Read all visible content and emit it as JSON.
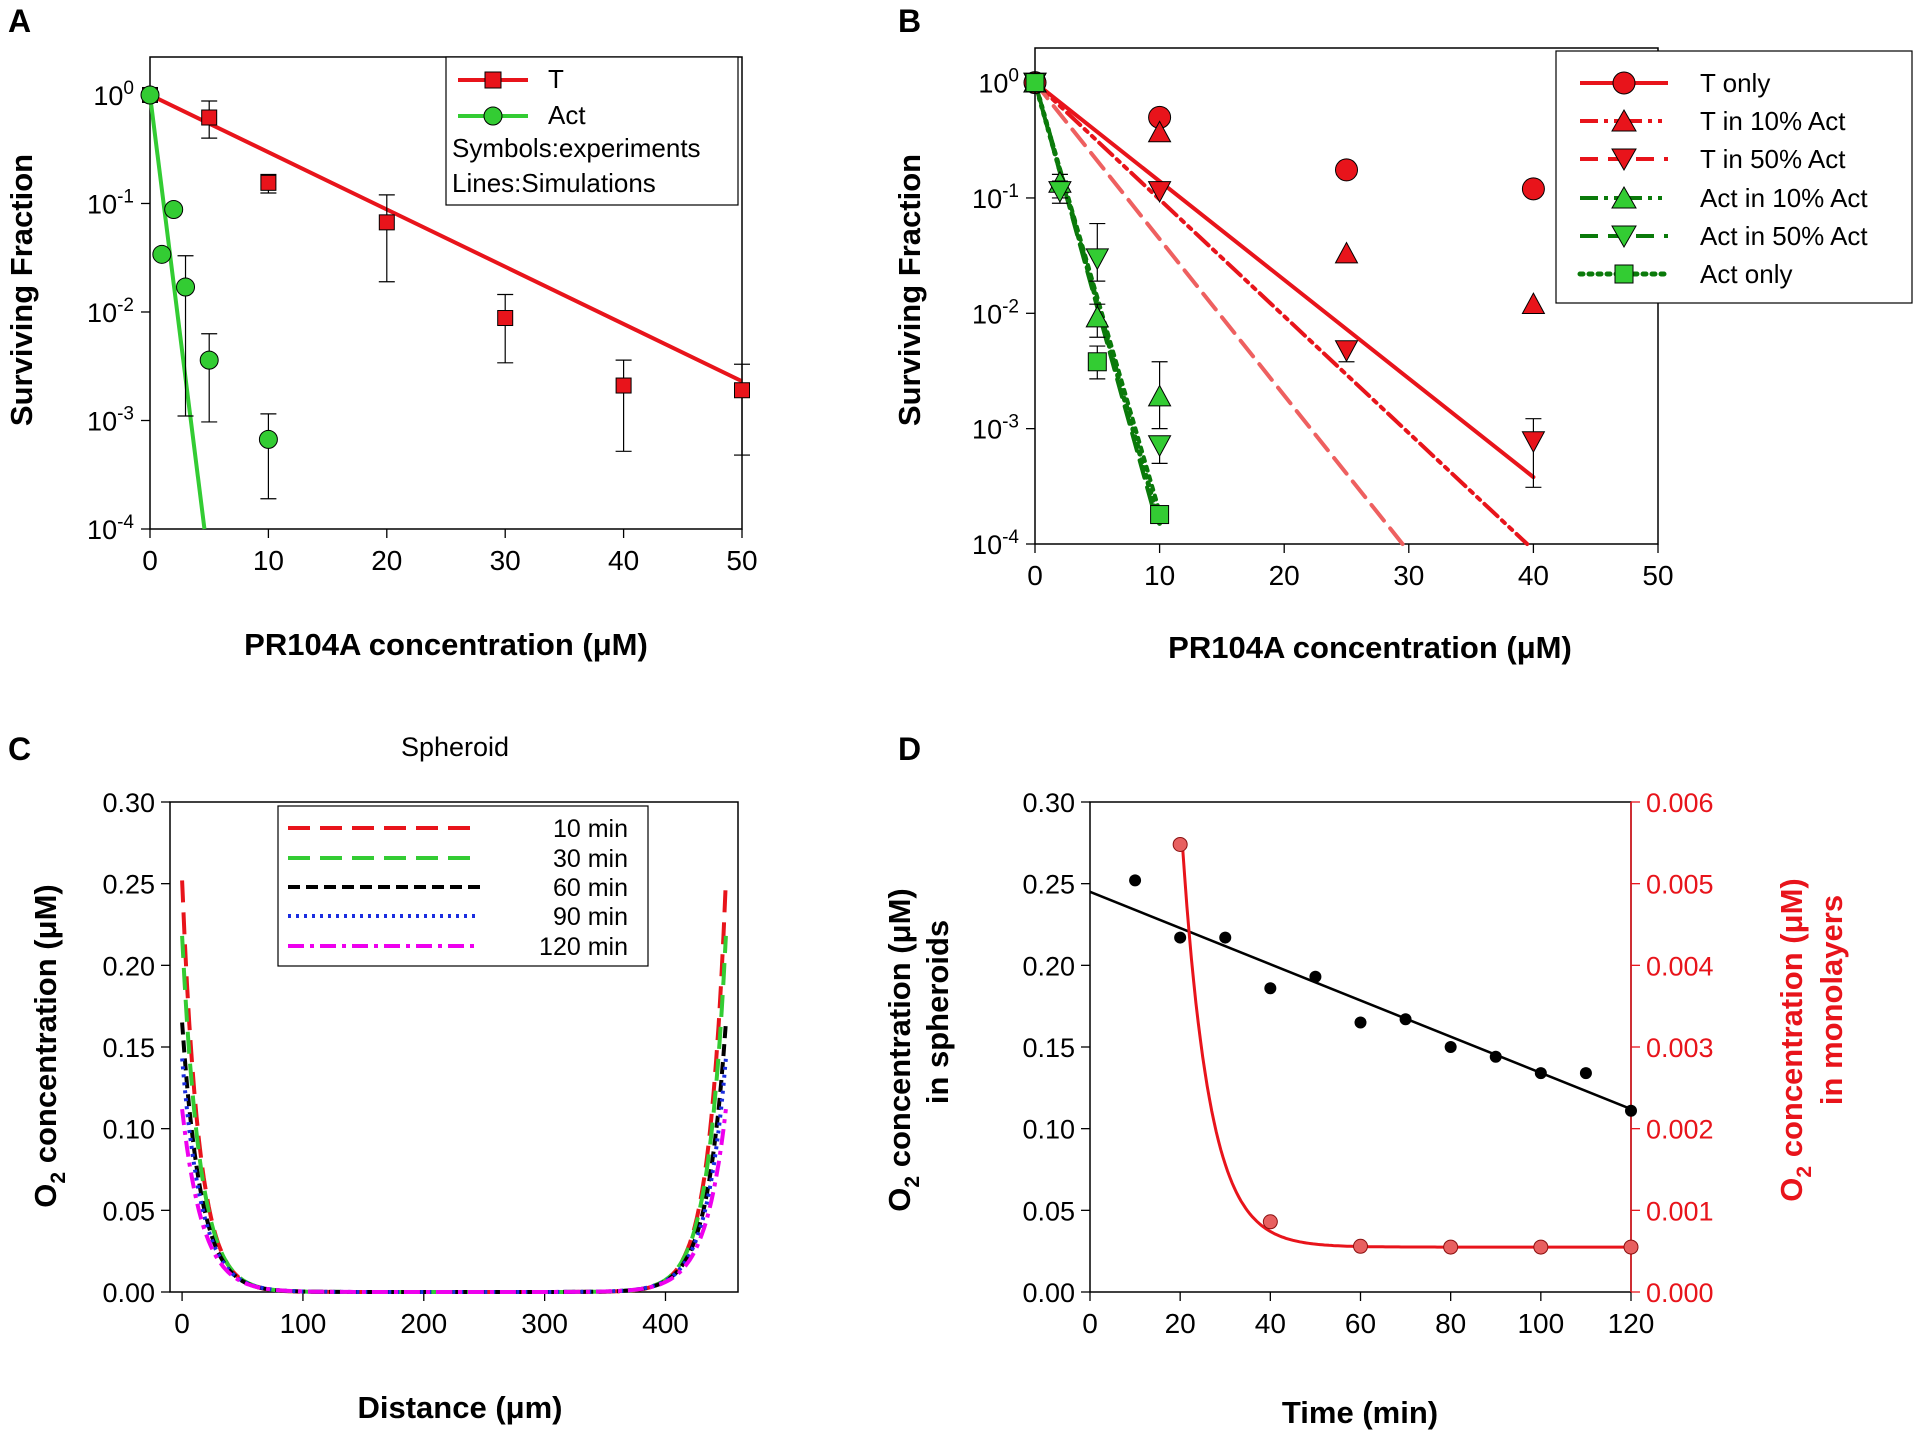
{
  "figure": {
    "panel_labels": [
      "A",
      "B",
      "C",
      "D"
    ]
  },
  "colors": {
    "red": "#e8141b",
    "green": "#33cc33",
    "dark_green": "#0a7a0a",
    "pink": "#ee6060",
    "black": "#000000",
    "blue": "#1a2de0",
    "magenta": "#ee00ee"
  },
  "chart_data": [
    {
      "panel": "A",
      "type": "scatter",
      "title": "",
      "xlabel": "PR104A concentration (μM)",
      "ylabel": "Surviving Fraction",
      "xlim": [
        0,
        50
      ],
      "ylim_log10": [
        -4,
        0.35
      ],
      "x_ticks": [
        "0",
        "10",
        "20",
        "30",
        "40",
        "50"
      ],
      "y_ticks": [
        {
          "base": "10",
          "exp": "0"
        },
        {
          "base": "10",
          "exp": "-1"
        },
        {
          "base": "10",
          "exp": "-2"
        },
        {
          "base": "10",
          "exp": "-3"
        },
        {
          "base": "10",
          "exp": "-4"
        }
      ],
      "legend": {
        "entries": [
          "T",
          "Act"
        ],
        "notes": [
          "Symbols:experiments",
          "Lines:Simulations"
        ]
      },
      "series": [
        {
          "name": "T",
          "x": [
            0,
            5,
            10,
            20,
            30,
            40,
            50
          ],
          "y": [
            1.0,
            0.62,
            0.155,
            0.067,
            0.0088,
            0.0021,
            0.0019
          ],
          "err_up": [
            1.0,
            0.88,
            0.185,
            0.12,
            0.0145,
            0.0036,
            0.0033
          ],
          "err_low": [
            1.0,
            0.4,
            0.125,
            0.019,
            0.0034,
            0.00052,
            0.00048
          ],
          "line": {
            "x": [
              0,
              50
            ],
            "y": [
              1.0,
              0.0023
            ]
          }
        },
        {
          "name": "Act",
          "x": [
            0,
            1,
            2,
            3,
            5,
            10
          ],
          "y": [
            1.0,
            0.034,
            0.088,
            0.017,
            0.0036,
            0.00067
          ],
          "err_up": [
            1.0,
            0.034,
            0.088,
            0.033,
            0.0063,
            0.00115
          ],
          "err_low": [
            1.0,
            0.034,
            0.088,
            0.0011,
            0.00097,
            0.00019
          ],
          "line": {
            "x": [
              0,
              4.6
            ],
            "y": [
              1.0,
              0.0001
            ]
          }
        }
      ]
    },
    {
      "panel": "B",
      "type": "scatter",
      "title": "",
      "xlabel": "PR104A concentration (μM)",
      "ylabel": "Surviving Fraction",
      "xlim": [
        0,
        50
      ],
      "ylim_log10": [
        -4,
        0.3
      ],
      "x_ticks": [
        "0",
        "10",
        "20",
        "30",
        "40",
        "50"
      ],
      "y_ticks": [
        {
          "base": "10",
          "exp": "0"
        },
        {
          "base": "10",
          "exp": "-1"
        },
        {
          "base": "10",
          "exp": "-2"
        },
        {
          "base": "10",
          "exp": "-3"
        },
        {
          "base": "10",
          "exp": "-4"
        }
      ],
      "legend": {
        "entries": [
          "T only",
          "T in 10% Act",
          "T in 50% Act",
          "Act in 10% Act",
          "Act in 50% Act",
          "Act only"
        ]
      },
      "series": [
        {
          "name": "T only",
          "x": [
            0,
            10,
            25,
            40
          ],
          "y": [
            1.0,
            0.5,
            0.175,
            0.12
          ],
          "line": {
            "x": [
              0,
              40
            ],
            "y": [
              1.0,
              0.00038
            ]
          }
        },
        {
          "name": "T in 10% Act",
          "x": [
            0,
            10,
            25,
            40
          ],
          "y": [
            1.0,
            0.37,
            0.033,
            0.012
          ],
          "line": {
            "x": [
              0,
              39.5
            ],
            "y": [
              1.0,
              0.0001
            ]
          }
        },
        {
          "name": "T in 50% Act",
          "x": [
            0,
            10,
            25,
            40
          ],
          "y": [
            1.0,
            0.115,
            0.0048,
            0.00078
          ],
          "err_up": [
            1.0,
            0.115,
            0.0055,
            0.00122
          ],
          "err_low": [
            1.0,
            0.115,
            0.0038,
            0.00031
          ],
          "line": {
            "x": [
              0,
              29.5
            ],
            "y": [
              1.0,
              0.0001
            ]
          }
        },
        {
          "name": "Act in 10% Act",
          "x": [
            0,
            2,
            5,
            10
          ],
          "y": [
            1.0,
            0.135,
            0.0092,
            0.0019
          ],
          "err_up": [
            1.0,
            0.16,
            0.012,
            0.0038
          ],
          "err_low": [
            1.0,
            0.1,
            0.0062,
            0.001
          ],
          "line": {
            "x": [
              0,
              10
            ],
            "y": [
              1.0,
              0.00019
            ]
          }
        },
        {
          "name": "Act in 50% Act",
          "x": [
            0,
            2,
            5,
            10
          ],
          "y": [
            1.0,
            0.115,
            0.03,
            0.00072
          ],
          "err_up": [
            1.0,
            0.14,
            0.06,
            0.00078
          ],
          "err_low": [
            1.0,
            0.09,
            0.019,
            0.0005
          ],
          "line": {
            "x": [
              0,
              9.6
            ],
            "y": [
              1.0,
              0.00018
            ]
          }
        },
        {
          "name": "Act only",
          "x": [
            0,
            5,
            10
          ],
          "y": [
            1.0,
            0.0038,
            0.00018
          ],
          "err_up": [
            1.0,
            0.0052,
            0.00018
          ],
          "err_low": [
            1.0,
            0.0027,
            0.00018
          ],
          "line": {
            "x": [
              0,
              10
            ],
            "y": [
              1.0,
              0.00015
            ]
          }
        }
      ]
    },
    {
      "panel": "C",
      "type": "line",
      "title": "Spheroid",
      "xlabel": "Distance (μm)",
      "ylabel_main": "O",
      "ylabel_sub": "2",
      "ylabel_rest": " concentration (μM)",
      "xlim": [
        -10,
        460
      ],
      "ylim": [
        0,
        0.3
      ],
      "x_ticks": [
        "0",
        "100",
        "200",
        "300",
        "400"
      ],
      "y_ticks": [
        "0.00",
        "0.05",
        "0.10",
        "0.15",
        "0.20",
        "0.25",
        "0.30"
      ],
      "legend": {
        "entries": [
          "10 min",
          "30 min",
          "60 min",
          "90 min",
          "120 min"
        ]
      },
      "series": [
        {
          "name": "10 min",
          "edge_value": 0.252
        },
        {
          "name": "30 min",
          "edge_value": 0.218
        },
        {
          "name": "60 min",
          "edge_value": 0.165
        },
        {
          "name": "90 min",
          "edge_value": 0.143
        },
        {
          "name": "120 min",
          "edge_value": 0.112
        }
      ]
    },
    {
      "panel": "D",
      "type": "scatter",
      "title": "",
      "xlabel": "Time (min)",
      "ylabel_left": {
        "main": "O",
        "sub": "2",
        "rest": " concentration (μM)",
        "line2": "in spheroids"
      },
      "ylabel_right": {
        "main": "O",
        "sub": "2",
        "rest": " concentration (μM)",
        "line2": "in monolayers"
      },
      "xlim": [
        0,
        120
      ],
      "ylim_left": [
        0,
        0.3
      ],
      "ylim_right": [
        0,
        0.006
      ],
      "x_ticks": [
        "0",
        "20",
        "40",
        "60",
        "80",
        "100",
        "120"
      ],
      "y_ticks_left": [
        "0.00",
        "0.05",
        "0.10",
        "0.15",
        "0.20",
        "0.25",
        "0.30"
      ],
      "y_ticks_right": [
        "0.000",
        "0.001",
        "0.002",
        "0.003",
        "0.004",
        "0.005",
        "0.006"
      ],
      "series": [
        {
          "name": "spheroids",
          "axis": "left",
          "x": [
            10,
            20,
            30,
            40,
            50,
            60,
            70,
            80,
            90,
            100,
            110,
            120
          ],
          "y": [
            0.252,
            0.217,
            0.217,
            0.186,
            0.193,
            0.165,
            0.167,
            0.15,
            0.144,
            0.134,
            0.134,
            0.111
          ],
          "line": {
            "x": [
              0,
              120
            ],
            "y": [
              0.245,
              0.112
            ]
          }
        },
        {
          "name": "monolayers",
          "axis": "right",
          "x": [
            20,
            40,
            60,
            80,
            100,
            120
          ],
          "y": [
            0.00548,
            0.00086,
            0.00056,
            0.00055,
            0.00055,
            0.00055
          ],
          "fit": {
            "start_x": 20.5,
            "start_y": 0.00548,
            "floor": 0.00055,
            "tau": 6.0
          }
        }
      ]
    }
  ]
}
